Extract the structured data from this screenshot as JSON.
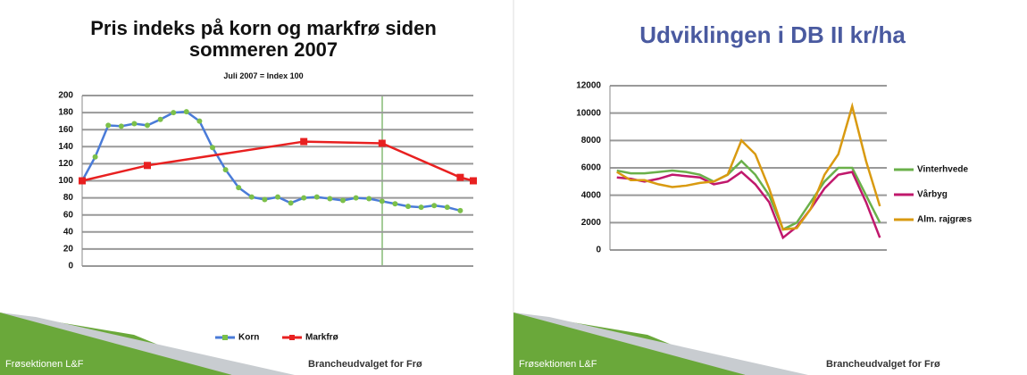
{
  "chart_data": [
    {
      "type": "line",
      "title": "Pris indeks på korn og markfrø siden sommeren 2007",
      "subtitle": "Juli 2007 = Index 100",
      "xlim": [
        0,
        30
      ],
      "ylim": [
        0,
        200
      ],
      "yticks": [
        0,
        20,
        40,
        60,
        80,
        100,
        120,
        140,
        160,
        180,
        200
      ],
      "grid": true,
      "legend": "bottom",
      "series": [
        {
          "name": "Korn",
          "color": "#4a7bd8",
          "marker": "circle",
          "marker_color": "#7cc04a",
          "x": [
            0,
            1,
            2,
            3,
            4,
            5,
            6,
            7,
            8,
            9,
            10,
            11,
            12,
            13,
            14,
            15,
            16,
            17,
            18,
            19,
            20,
            21,
            22,
            23,
            24,
            25,
            26,
            27,
            28,
            29
          ],
          "values": [
            100,
            128,
            165,
            164,
            167,
            165,
            172,
            180,
            181,
            170,
            139,
            113,
            92,
            81,
            78,
            81,
            74,
            80,
            81,
            79,
            77,
            80,
            79,
            76,
            73,
            70,
            69,
            71,
            69,
            65
          ]
        },
        {
          "name": "Markfrø",
          "color": "#e82020",
          "marker": "square",
          "marker_color": "#e82020",
          "x": [
            0,
            5,
            17,
            23,
            29,
            30
          ],
          "values": [
            100,
            118,
            146,
            144,
            104,
            100
          ]
        }
      ]
    },
    {
      "type": "line",
      "title": "Udviklingen i DB II kr/ha",
      "categories": [
        null,
        null,
        null,
        null,
        null,
        null,
        null,
        null,
        null,
        null,
        null,
        null,
        null,
        null,
        null,
        null,
        null,
        null,
        null,
        null
      ],
      "ylim": [
        0,
        12000
      ],
      "yticks": [
        0,
        2000,
        4000,
        6000,
        8000,
        10000,
        12000
      ],
      "grid": true,
      "legend": "right",
      "series": [
        {
          "name": "Vinterhvede",
          "color": "#6ab04a",
          "values": [
            5800,
            5600,
            5600,
            5700,
            5800,
            5700,
            5500,
            5000,
            5500,
            6500,
            5500,
            4000,
            1500,
            2000,
            3500,
            5000,
            6000,
            6000,
            4000,
            2000
          ]
        },
        {
          "name": "Vårbyg",
          "color": "#c0186c",
          "values": [
            5300,
            5200,
            5000,
            5200,
            5500,
            5400,
            5300,
            4800,
            5000,
            5700,
            4800,
            3500,
            900,
            1700,
            3000,
            4500,
            5500,
            5700,
            3500,
            900
          ]
        },
        {
          "name": "Alm. rajgræs",
          "color": "#d99a10",
          "values": [
            5700,
            5100,
            5100,
            4800,
            4600,
            4700,
            4900,
            5000,
            5500,
            8000,
            7000,
            4500,
            1500,
            1600,
            3000,
            5500,
            7000,
            10500,
            6500,
            3200
          ]
        }
      ]
    }
  ],
  "footers": [
    {
      "left": "Frøsektionen L&F",
      "right": "Brancheudvalget for Frø"
    },
    {
      "left": "Frøsektionen L&F",
      "right": "Brancheudvalget for Frø"
    }
  ]
}
